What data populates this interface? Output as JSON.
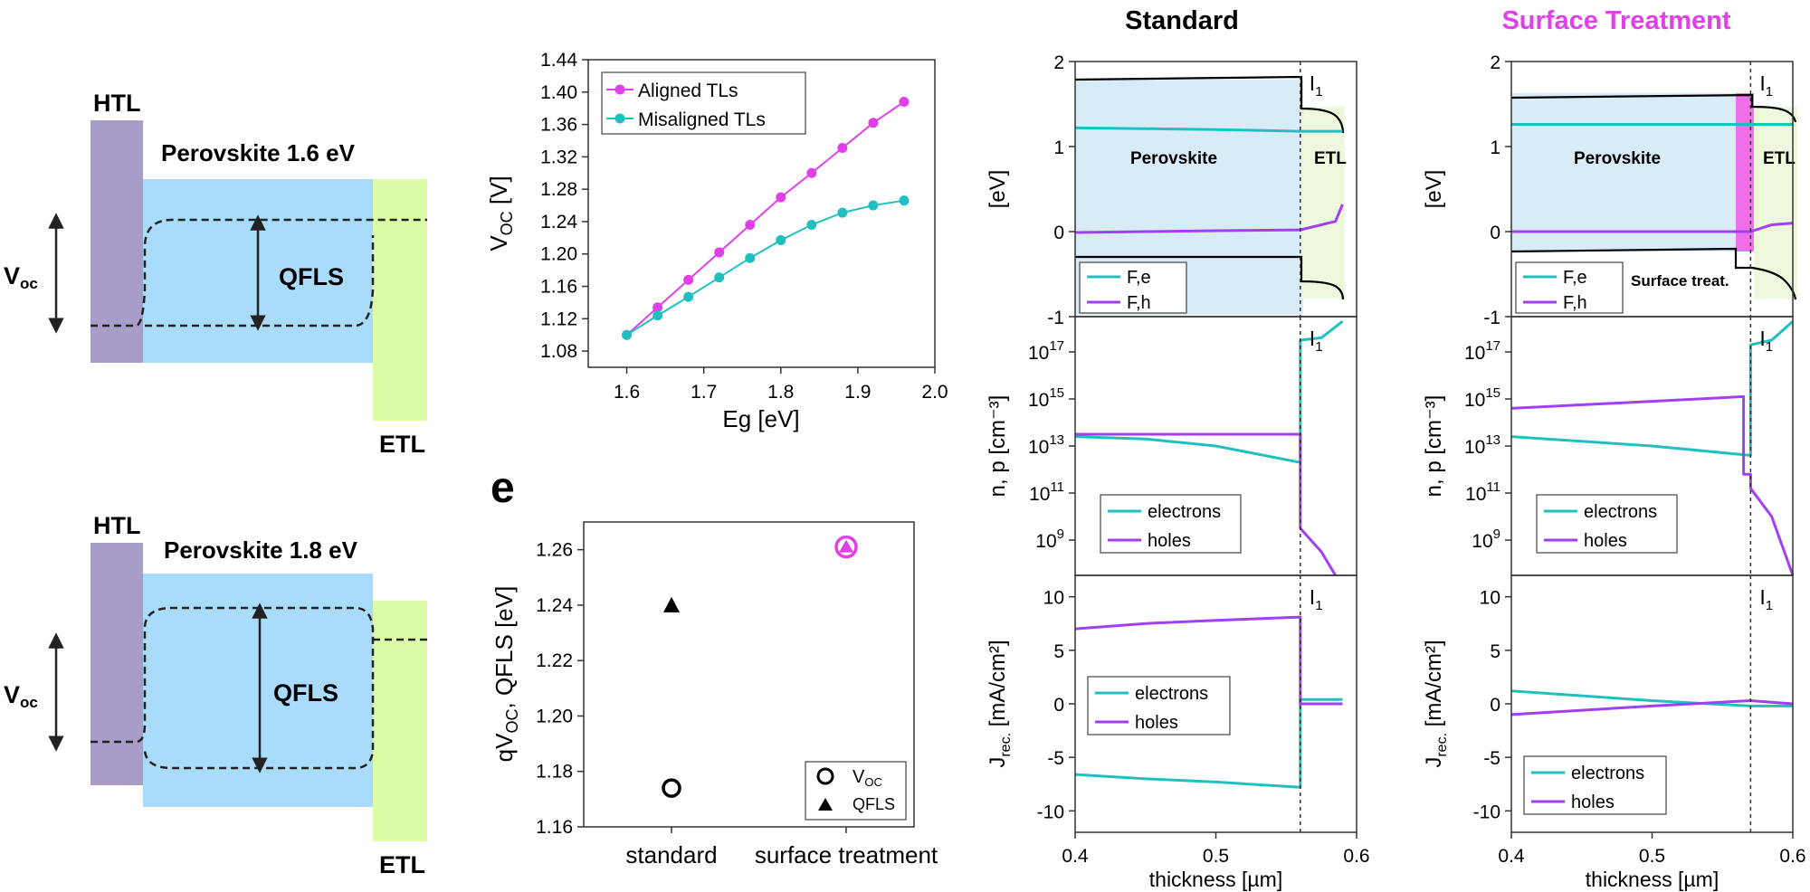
{
  "colors": {
    "htl": "#a89cc8",
    "perovskite": "#a8dcfa",
    "etl": "#dcfca8",
    "aligned": "#e040e8",
    "misaligned": "#20c0c0",
    "electrons": "#20c0c0",
    "holes": "#a040f0",
    "region_perovskite": "#d8ecf8",
    "region_etl": "#eef8dc",
    "surface_layer": "#f070e8",
    "title_surface": "#e040e8"
  },
  "schematics": [
    {
      "htl": "HTL",
      "perovskite": "Perovskite 1.6 eV",
      "etl": "ETL",
      "voc": "V",
      "voc_sub": "oc",
      "qfls": "QFLS"
    },
    {
      "htl": "HTL",
      "perovskite": "Perovskite 1.8 eV",
      "etl": "ETL",
      "voc": "V",
      "voc_sub": "oc",
      "qfls": "QFLS"
    }
  ],
  "panel_e_label": "e",
  "column_titles": {
    "standard": "Standard",
    "surface": "Surface Treatment"
  },
  "interface_label": {
    "main": "I",
    "sub": "1"
  },
  "band_labels": {
    "perovskite": "Perovskite",
    "etl": "ETL",
    "surface": "Surface treat."
  },
  "chart_data": [
    {
      "type": "line",
      "name": "voc-vs-eg",
      "xlabel": "Eg [eV]",
      "ylabel_main": "V",
      "ylabel_sub": "OC",
      "ylabel_unit": " [V]",
      "xlim": [
        1.55,
        2.0
      ],
      "ylim": [
        1.06,
        1.44
      ],
      "xticks": [
        "1.6",
        "1.7",
        "1.8",
        "1.9",
        "2.0"
      ],
      "yticks": [
        "1.08",
        "1.12",
        "1.16",
        "1.20",
        "1.24",
        "1.28",
        "1.32",
        "1.36",
        "1.40",
        "1.44"
      ],
      "legend": "top-left",
      "series": [
        {
          "name": "Aligned TLs",
          "x": [
            1.6,
            1.64,
            1.68,
            1.72,
            1.76,
            1.8,
            1.84,
            1.88,
            1.92,
            1.96
          ],
          "y": [
            1.1,
            1.134,
            1.168,
            1.202,
            1.236,
            1.27,
            1.3,
            1.331,
            1.362,
            1.388
          ]
        },
        {
          "name": "Misaligned TLs",
          "x": [
            1.6,
            1.64,
            1.68,
            1.72,
            1.76,
            1.8,
            1.84,
            1.88,
            1.92,
            1.96
          ],
          "y": [
            1.1,
            1.124,
            1.147,
            1.171,
            1.195,
            1.217,
            1.236,
            1.251,
            1.26,
            1.266
          ]
        }
      ]
    },
    {
      "type": "scatter",
      "name": "qvoc-qfls",
      "categories": [
        "standard",
        "surface treatment"
      ],
      "ylabel_main": "qV",
      "ylabel_sub": "OC",
      "ylabel_rest": ", QFLS [eV]",
      "ylim": [
        1.16,
        1.27
      ],
      "yticks": [
        "1.16",
        "1.18",
        "1.20",
        "1.22",
        "1.24",
        "1.26"
      ],
      "legend": "bottom-right",
      "legend_voc_main": "V",
      "legend_voc_sub": "OC",
      "legend_qfls": "QFLS",
      "voc": [
        1.174,
        1.261
      ],
      "qfls": [
        1.24,
        1.261
      ]
    },
    {
      "type": "line",
      "name": "standard-band",
      "ylabel": "[eV]",
      "xlim": [
        0.4,
        0.6
      ],
      "ylim": [
        -1,
        2
      ],
      "yticks": [
        "-1",
        "0",
        "1",
        "2"
      ],
      "legend": "bottom-left",
      "series": [
        {
          "name": "F,e",
          "x": [
            0.4,
            0.45,
            0.5,
            0.56,
            0.57,
            0.59
          ],
          "y": [
            1.22,
            1.21,
            1.2,
            1.18,
            1.18,
            1.18
          ]
        },
        {
          "name": "F,h",
          "x": [
            0.4,
            0.45,
            0.5,
            0.56,
            0.57,
            0.585,
            0.59
          ],
          "y": [
            -0.01,
            0.0,
            0.01,
            0.02,
            0.06,
            0.12,
            0.32
          ]
        }
      ]
    },
    {
      "type": "line",
      "name": "standard-density",
      "ylabel": "n, p [cm⁻³]",
      "xlim": [
        0.4,
        0.6
      ],
      "yticks": [
        "10^9",
        "10^11",
        "10^13",
        "10^15",
        "10^17"
      ],
      "legend": "bottom-left",
      "series": [
        {
          "name": "electrons",
          "x": [
            0.4,
            0.45,
            0.5,
            0.56,
            0.56,
            0.575,
            0.59
          ],
          "y": [
            13.4,
            13.3,
            13.0,
            12.3,
            17.5,
            17.6,
            18.3
          ]
        },
        {
          "name": "holes",
          "x": [
            0.4,
            0.56,
            0.56,
            0.575,
            0.585
          ],
          "y": [
            13.5,
            13.5,
            9.5,
            8.5,
            7.5
          ]
        }
      ]
    },
    {
      "type": "line",
      "name": "standard-current",
      "ylabel_main": "J",
      "ylabel_sub": "rec.",
      "ylabel_unit": " [mA/cm²]",
      "xlabel": "thickness [µm]",
      "xlim": [
        0.4,
        0.6
      ],
      "xticks": [
        "0.4",
        "0.5",
        "0.6"
      ],
      "ylim": [
        -12,
        12
      ],
      "yticks": [
        "-10",
        "-5",
        "0",
        "5",
        "10"
      ],
      "legend": "bottom-left",
      "series": [
        {
          "name": "electrons",
          "x": [
            0.4,
            0.45,
            0.5,
            0.56,
            0.56,
            0.59
          ],
          "y": [
            -6.6,
            -7.0,
            -7.3,
            -7.8,
            0.4,
            0.4
          ]
        },
        {
          "name": "holes",
          "x": [
            0.4,
            0.45,
            0.5,
            0.56,
            0.56,
            0.59
          ],
          "y": [
            7.0,
            7.5,
            7.8,
            8.1,
            0.0,
            0.0
          ]
        }
      ]
    },
    {
      "type": "line",
      "name": "surface-band",
      "ylabel": "[eV]",
      "xlim": [
        0.4,
        0.6
      ],
      "ylim": [
        -1,
        2
      ],
      "yticks": [
        "-1",
        "0",
        "1",
        "2"
      ],
      "legend": "bottom-left",
      "series": [
        {
          "name": "F,e",
          "x": [
            0.4,
            0.5,
            0.6
          ],
          "y": [
            1.26,
            1.26,
            1.26
          ]
        },
        {
          "name": "F,h",
          "x": [
            0.4,
            0.5,
            0.56,
            0.57,
            0.585,
            0.6
          ],
          "y": [
            0.0,
            0.0,
            0.0,
            0.0,
            0.08,
            0.1
          ]
        }
      ]
    },
    {
      "type": "line",
      "name": "surface-density",
      "ylabel": "n, p [cm⁻³]",
      "xlim": [
        0.4,
        0.6
      ],
      "yticks": [
        "10^9",
        "10^11",
        "10^13",
        "10^15",
        "10^17"
      ],
      "legend": "bottom-left",
      "series": [
        {
          "name": "electrons",
          "x": [
            0.4,
            0.5,
            0.57,
            0.57,
            0.585,
            0.6
          ],
          "y": [
            13.4,
            13.0,
            12.6,
            17.3,
            17.5,
            18.3
          ]
        },
        {
          "name": "holes",
          "x": [
            0.4,
            0.5,
            0.565,
            0.565,
            0.57,
            0.57,
            0.585,
            0.6
          ],
          "y": [
            14.6,
            14.9,
            15.1,
            11.8,
            11.8,
            11.2,
            10.0,
            7.5
          ]
        }
      ]
    },
    {
      "type": "line",
      "name": "surface-current",
      "ylabel_main": "J",
      "ylabel_sub": "rec.",
      "ylabel_unit": " [mA/cm²]",
      "xlabel": "thickness [µm]",
      "xlim": [
        0.4,
        0.6
      ],
      "xticks": [
        "0.4",
        "0.5",
        "0.6"
      ],
      "ylim": [
        -12,
        12
      ],
      "yticks": [
        "-10",
        "-5",
        "0",
        "5",
        "10"
      ],
      "legend": "bottom-left",
      "series": [
        {
          "name": "electrons",
          "x": [
            0.4,
            0.5,
            0.57,
            0.6
          ],
          "y": [
            1.2,
            0.3,
            -0.2,
            -0.2
          ]
        },
        {
          "name": "holes",
          "x": [
            0.4,
            0.5,
            0.57,
            0.6
          ],
          "y": [
            -1.0,
            -0.2,
            0.3,
            0.0
          ]
        }
      ]
    }
  ]
}
